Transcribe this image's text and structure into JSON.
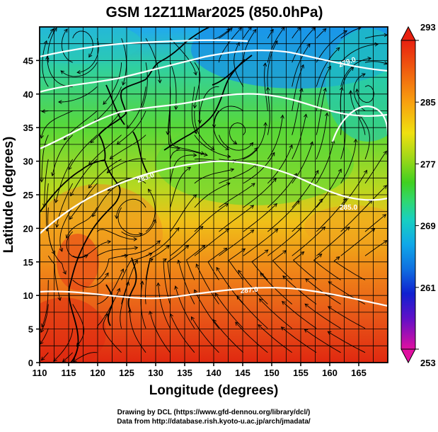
{
  "title": "GSM 12Z11Mar2025 (850.0hPa)",
  "x_axis": {
    "label": "Longitude (degrees)",
    "range": [
      110,
      170
    ],
    "ticks": [
      "110",
      "115",
      "120",
      "125",
      "130",
      "135",
      "140",
      "145",
      "150",
      "155",
      "160",
      "165"
    ]
  },
  "y_axis": {
    "label": "Latitude  (degrees)",
    "range": [
      0,
      50
    ],
    "ticks": [
      "0",
      "5",
      "10",
      "15",
      "20",
      "25",
      "30",
      "35",
      "40",
      "45"
    ]
  },
  "colorbar": {
    "labels": [
      "293",
      "285",
      "277",
      "269",
      "261",
      "253"
    ],
    "range": [
      253,
      293
    ],
    "colors": [
      "#e0109a",
      "#6010c8",
      "#1020d0",
      "#1070e0",
      "#10a8e8",
      "#18d0c0",
      "#30d870",
      "#40d020",
      "#a0d818",
      "#f0e010",
      "#f8a010",
      "#f06010",
      "#e82010"
    ]
  },
  "contour_labels": [
    "279.0",
    "283.0",
    "285.0",
    "287.0"
  ],
  "credits": {
    "line1": "Drawing by DCL (https://www.gfd-dennou.org/library/dcl/)",
    "line2": "Data from http://database.rish.kyoto-u.ac.jp/arch/jmadata/"
  }
}
